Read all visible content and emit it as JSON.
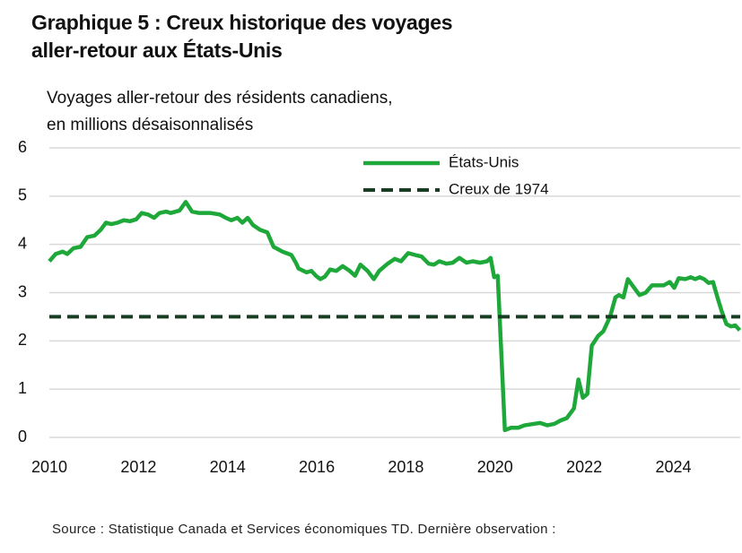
{
  "chart_data": {
    "type": "line",
    "title": [
      "Graphique 5 : Creux historique des voyages",
      "aller-retour aux États-Unis"
    ],
    "y_label": [
      "Voyages aller-retour des résidents canadiens,",
      "en millions désaisonnalisés"
    ],
    "source": "Source : Statistique Canada et Services économiques TD. Dernière observation :",
    "xlim": [
      2010,
      2025.5
    ],
    "xticks": [
      2010,
      2012,
      2014,
      2016,
      2018,
      2020,
      2022,
      2024
    ],
    "ylim": [
      0,
      6
    ],
    "yticks": [
      0,
      1,
      2,
      3,
      4,
      5,
      6
    ],
    "grid": true,
    "legend": "top",
    "series": [
      {
        "name": "États-Unis",
        "color": "#1fa83a",
        "dash": false,
        "x": [
          2010.0,
          2010.14,
          2010.3,
          2010.4,
          2010.54,
          2010.7,
          2010.85,
          2011.01,
          2011.15,
          2011.27,
          2011.39,
          2011.53,
          2011.67,
          2011.81,
          2011.95,
          2012.07,
          2012.21,
          2012.35,
          2012.47,
          2012.62,
          2012.72,
          2012.92,
          2013.06,
          2013.2,
          2013.36,
          2013.62,
          2013.82,
          2013.96,
          2014.08,
          2014.22,
          2014.33,
          2014.45,
          2014.57,
          2014.73,
          2014.89,
          2015.03,
          2015.23,
          2015.43,
          2015.53,
          2015.59,
          2015.77,
          2015.88,
          2015.98,
          2016.08,
          2016.18,
          2016.3,
          2016.44,
          2016.58,
          2016.74,
          2016.86,
          2016.98,
          2017.14,
          2017.28,
          2017.4,
          2017.59,
          2017.75,
          2017.89,
          2018.05,
          2018.21,
          2018.35,
          2018.51,
          2018.63,
          2018.75,
          2018.91,
          2019.05,
          2019.2,
          2019.36,
          2019.5,
          2019.66,
          2019.82,
          2019.9,
          2019.98,
          2020.06,
          2020.22,
          2020.36,
          2020.52,
          2020.66,
          2020.87,
          2021.01,
          2021.17,
          2021.33,
          2021.47,
          2021.61,
          2021.77,
          2021.87,
          2021.97,
          2022.07,
          2022.17,
          2022.31,
          2022.43,
          2022.58,
          2022.7,
          2022.78,
          2022.88,
          2022.98,
          2023.12,
          2023.24,
          2023.38,
          2023.52,
          2023.64,
          2023.78,
          2023.92,
          2024.02,
          2024.12,
          2024.27,
          2024.39,
          2024.49,
          2024.59,
          2024.69,
          2024.79,
          2024.89,
          2024.99,
          2025.09,
          2025.19,
          2025.29,
          2025.39,
          2025.49
        ],
        "values": [
          3.65,
          3.8,
          3.85,
          3.8,
          3.92,
          3.95,
          4.15,
          4.18,
          4.3,
          4.45,
          4.42,
          4.45,
          4.5,
          4.48,
          4.52,
          4.65,
          4.62,
          4.55,
          4.65,
          4.68,
          4.65,
          4.7,
          4.88,
          4.68,
          4.65,
          4.65,
          4.62,
          4.55,
          4.5,
          4.55,
          4.45,
          4.55,
          4.4,
          4.3,
          4.25,
          3.95,
          3.85,
          3.78,
          3.62,
          3.5,
          3.42,
          3.45,
          3.35,
          3.28,
          3.33,
          3.48,
          3.45,
          3.55,
          3.45,
          3.35,
          3.58,
          3.45,
          3.28,
          3.45,
          3.6,
          3.7,
          3.65,
          3.82,
          3.78,
          3.75,
          3.6,
          3.58,
          3.65,
          3.6,
          3.62,
          3.72,
          3.62,
          3.65,
          3.62,
          3.65,
          3.72,
          3.32,
          3.35,
          0.15,
          0.2,
          0.2,
          0.25,
          0.28,
          0.3,
          0.25,
          0.28,
          0.35,
          0.4,
          0.6,
          1.2,
          0.82,
          0.9,
          1.9,
          2.1,
          2.2,
          2.5,
          2.9,
          2.95,
          2.9,
          3.28,
          3.1,
          2.95,
          3.0,
          3.15,
          3.15,
          3.15,
          3.22,
          3.1,
          3.3,
          3.28,
          3.32,
          3.28,
          3.32,
          3.28,
          3.2,
          3.22,
          2.9,
          2.6,
          2.35,
          2.3,
          2.32,
          2.22
        ]
      },
      {
        "name": "Creux de 1974",
        "color": "#173d23",
        "dash": true,
        "x": [
          2010,
          2025.5
        ],
        "values": [
          2.5,
          2.5
        ]
      }
    ]
  }
}
